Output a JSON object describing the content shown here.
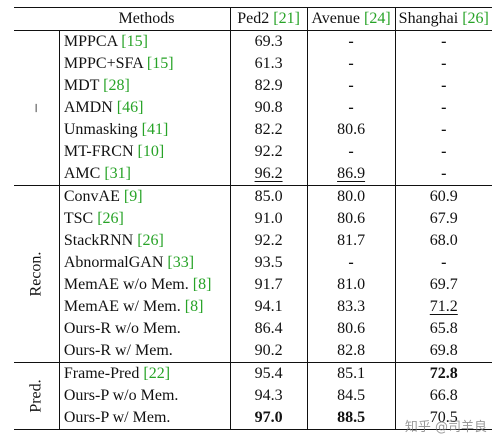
{
  "header": {
    "methods": "Methods",
    "ped2": "Ped2",
    "ped2_ref": "[21]",
    "avenue": "Avenue",
    "avenue_ref": "[24]",
    "shanghai": "Shanghai",
    "shanghai_ref": "[26]"
  },
  "groups": {
    "g1": "–",
    "g2": "Recon.",
    "g3": "Pred."
  },
  "rows": [
    {
      "name": "MPPCA",
      "ref": "[15]",
      "ped2": "69.3",
      "avenue": "-",
      "shanghai": "-"
    },
    {
      "name": "MPPC+SFA",
      "ref": "[15]",
      "ped2": "61.3",
      "avenue": "-",
      "shanghai": "-"
    },
    {
      "name": "MDT",
      "ref": "[28]",
      "ped2": "82.9",
      "avenue": "-",
      "shanghai": "-"
    },
    {
      "name": "AMDN",
      "ref": "[46]",
      "ped2": "90.8",
      "avenue": "-",
      "shanghai": "-"
    },
    {
      "name": "Unmasking",
      "ref": "[41]",
      "ped2": "82.2",
      "avenue": "80.6",
      "shanghai": "-"
    },
    {
      "name": "MT-FRCN",
      "ref": "[10]",
      "ped2": "92.2",
      "avenue": "-",
      "shanghai": "-"
    },
    {
      "name": "AMC",
      "ref": "[31]",
      "ped2": "96.2",
      "avenue": "86.9",
      "shanghai": "-"
    },
    {
      "name": "ConvAE",
      "ref": "[9]",
      "ped2": "85.0",
      "avenue": "80.0",
      "shanghai": "60.9"
    },
    {
      "name": "TSC",
      "ref": "[26]",
      "ped2": "91.0",
      "avenue": "80.6",
      "shanghai": "67.9"
    },
    {
      "name": "StackRNN",
      "ref": "[26]",
      "ped2": "92.2",
      "avenue": "81.7",
      "shanghai": "68.0"
    },
    {
      "name": "AbnormalGAN",
      "ref": "[33]",
      "ped2": "93.5",
      "avenue": "-",
      "shanghai": "-"
    },
    {
      "name": "MemAE w/o Mem.",
      "ref": "[8]",
      "ped2": "91.7",
      "avenue": "81.0",
      "shanghai": "69.7"
    },
    {
      "name": "MemAE w/ Mem.",
      "ref": "[8]",
      "ped2": "94.1",
      "avenue": "83.3",
      "shanghai": "71.2"
    },
    {
      "name": "Ours-R w/o Mem.",
      "ref": "",
      "ped2": "86.4",
      "avenue": "80.6",
      "shanghai": "65.8"
    },
    {
      "name": "Ours-R w/ Mem.",
      "ref": "",
      "ped2": "90.2",
      "avenue": "82.8",
      "shanghai": "69.8"
    },
    {
      "name": "Frame-Pred",
      "ref": "[22]",
      "ped2": "95.4",
      "avenue": "85.1",
      "shanghai": "72.8"
    },
    {
      "name": "Ours-P w/o Mem.",
      "ref": "",
      "ped2": "94.3",
      "avenue": "84.5",
      "shanghai": "66.8"
    },
    {
      "name": "Ours-P w/ Mem.",
      "ref": "",
      "ped2": "97.0",
      "avenue": "88.5",
      "shanghai": "70.5"
    }
  ],
  "watermark": "知乎 @司羊良",
  "colors": {
    "citation": "#27a327",
    "text": "#111111"
  }
}
